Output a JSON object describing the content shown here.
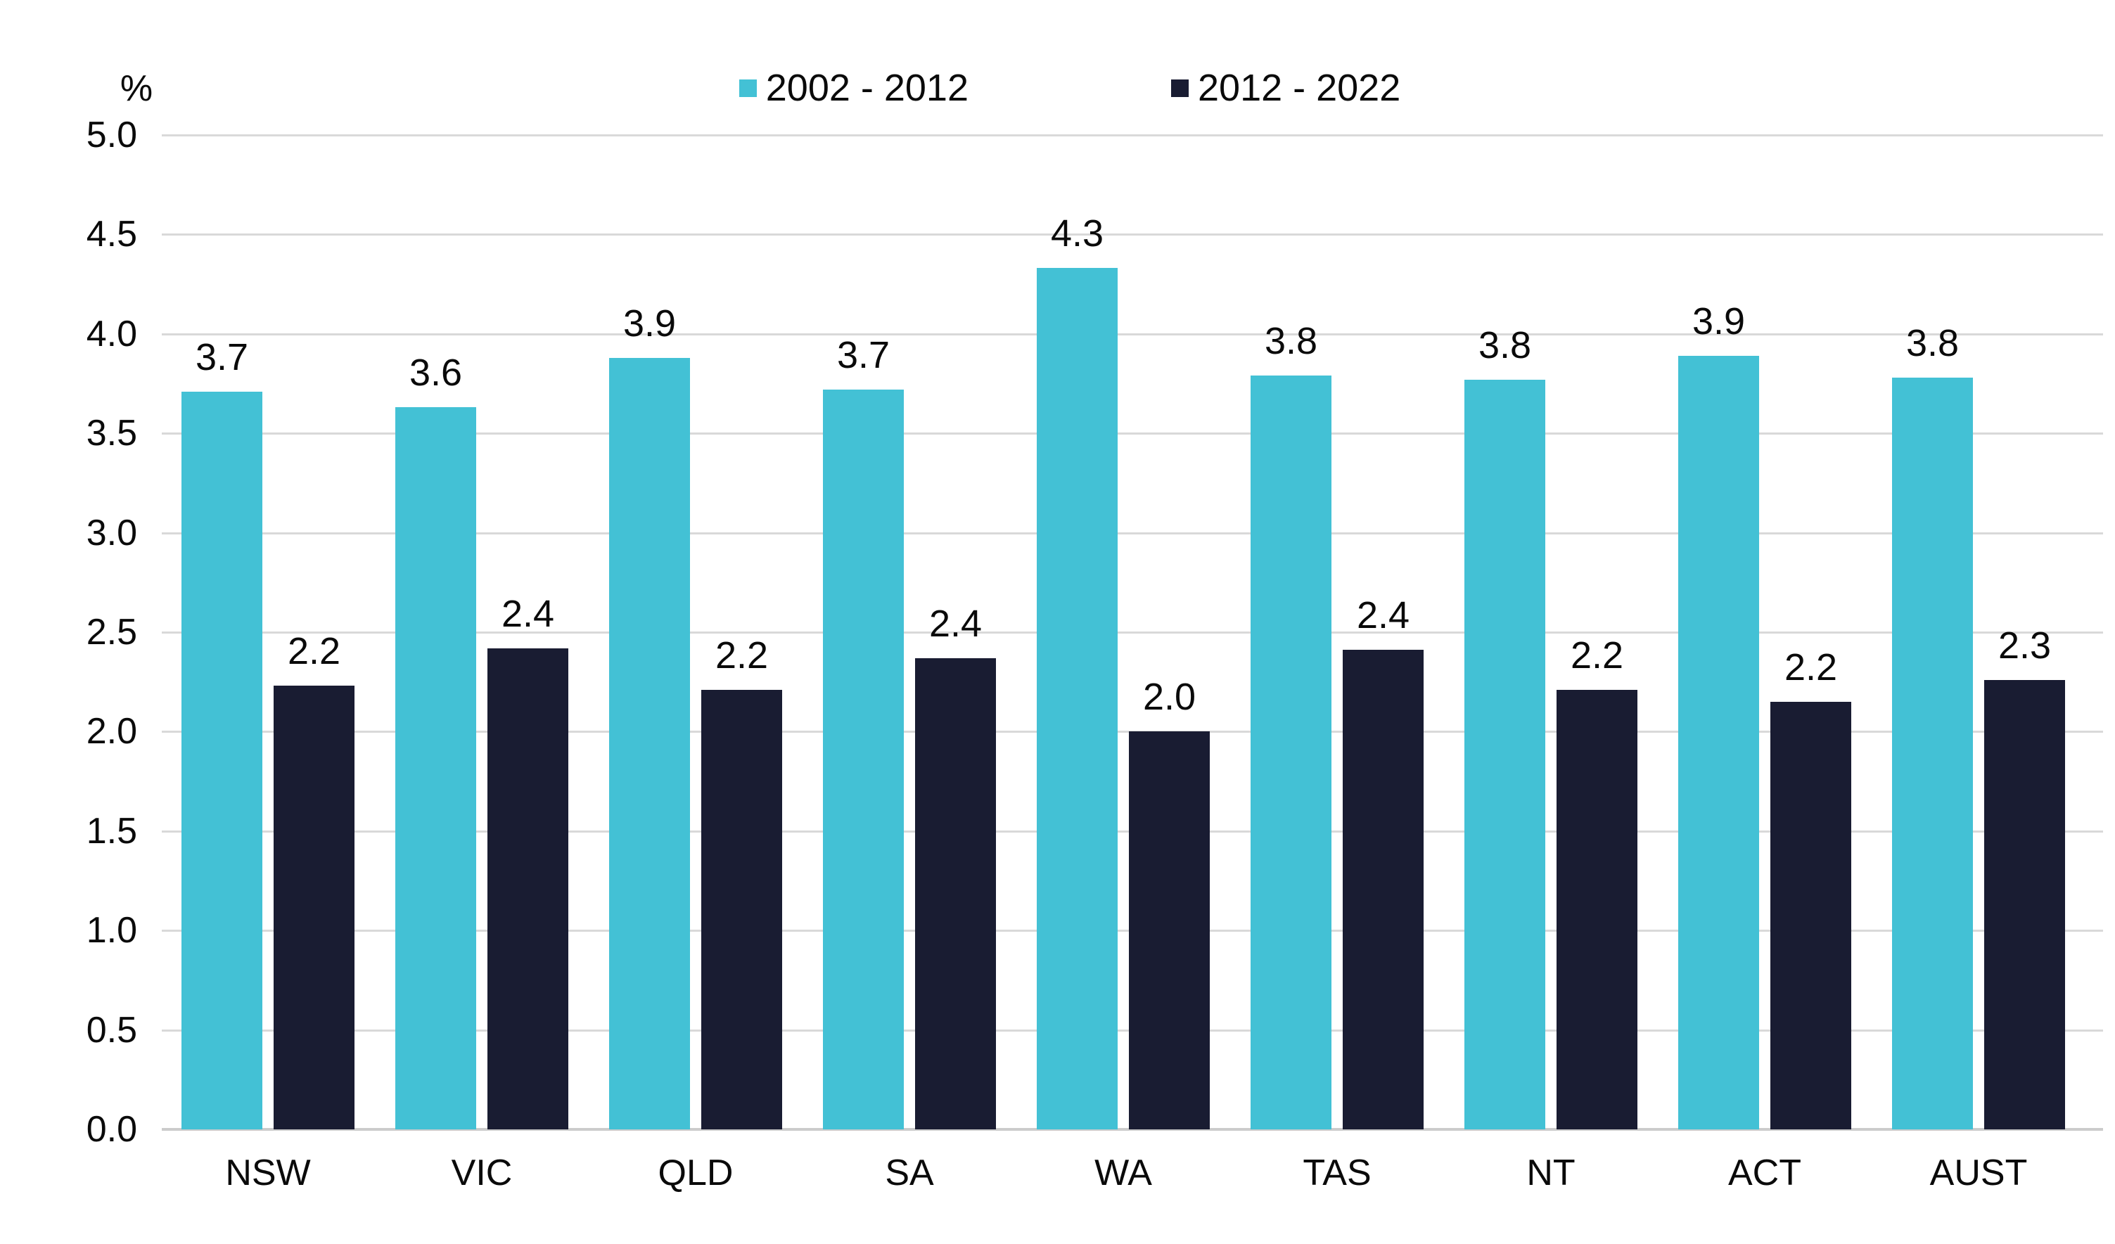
{
  "chart_data": {
    "type": "bar",
    "title": "",
    "axis_unit_label": "%",
    "categories": [
      "NSW",
      "VIC",
      "QLD",
      "SA",
      "WA",
      "TAS",
      "NT",
      "ACT",
      "AUST"
    ],
    "series": [
      {
        "name": "2002 - 2012",
        "color": "#43C1D5",
        "values": [
          3.7,
          3.6,
          3.9,
          3.7,
          4.3,
          3.8,
          3.8,
          3.9,
          3.8
        ],
        "data_labels": [
          "3.7",
          "3.6",
          "3.9",
          "3.7",
          "4.3",
          "3.8",
          "3.8",
          "3.9",
          "3.8"
        ],
        "bar_heights": [
          3.71,
          3.63,
          3.88,
          3.72,
          4.33,
          3.79,
          3.77,
          3.89,
          3.78
        ]
      },
      {
        "name": "2012 - 2022",
        "color": "#191C32",
        "values": [
          2.2,
          2.4,
          2.2,
          2.4,
          2.0,
          2.4,
          2.2,
          2.2,
          2.3
        ],
        "data_labels": [
          "2.2",
          "2.4",
          "2.2",
          "2.4",
          "2.0",
          "2.4",
          "2.2",
          "2.2",
          "2.3"
        ],
        "bar_heights": [
          2.23,
          2.42,
          2.21,
          2.37,
          2.0,
          2.41,
          2.21,
          2.15,
          2.26
        ]
      }
    ],
    "ylim": [
      0,
      5
    ],
    "yticks": [
      "5.0",
      "4.5",
      "4.0",
      "3.5",
      "3.0",
      "2.5",
      "2.0",
      "1.5",
      "1.0",
      "0.5",
      "0.0"
    ],
    "grid": true,
    "gridline_color": "#D9D9D9",
    "legend_position": "top-center",
    "xlabel": "",
    "ylabel": "%"
  }
}
